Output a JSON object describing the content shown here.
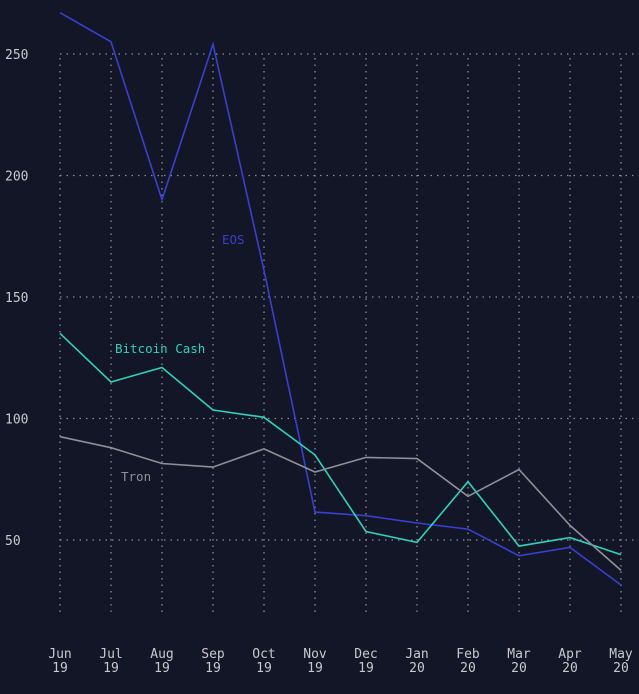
{
  "chart_data": {
    "type": "line",
    "title": "",
    "xlabel": "",
    "ylabel": "",
    "categories": [
      [
        "Jun",
        "19"
      ],
      [
        "Jul",
        "19"
      ],
      [
        "Aug",
        "19"
      ],
      [
        "Sep",
        "19"
      ],
      [
        "Oct",
        "19"
      ],
      [
        "Nov",
        "19"
      ],
      [
        "Dec",
        "19"
      ],
      [
        "Jan",
        "20"
      ],
      [
        "Feb",
        "20"
      ],
      [
        "Mar",
        "20"
      ],
      [
        "Apr",
        "20"
      ],
      [
        "May",
        "20"
      ]
    ],
    "yticks": [
      50,
      100,
      150,
      200,
      250
    ],
    "ylim": [
      18,
      272
    ],
    "grid": true,
    "legend_position": "inline",
    "series": [
      {
        "name": "EOS",
        "color": "#3a3fcf",
        "label_pos": [
          222,
          244
        ],
        "values": [
          267,
          255,
          190,
          254,
          161,
          61.5,
          60,
          57,
          54.5,
          43.5,
          47,
          31.5
        ]
      },
      {
        "name": "Bitcoin Cash",
        "color": "#2ed2bc",
        "label_pos": [
          115,
          353
        ],
        "values": [
          135,
          115,
          121,
          103.5,
          100.5,
          85,
          53.5,
          49,
          74,
          47.5,
          51,
          44
        ]
      },
      {
        "name": "Tron",
        "color": "#8f8f96",
        "label_pos": [
          121,
          481
        ],
        "values": [
          92.5,
          88,
          81.5,
          80,
          87.5,
          78,
          84,
          83.5,
          68,
          79,
          56,
          37.5
        ]
      }
    ]
  },
  "colors": {
    "background": "#131627",
    "tick_text": "#c8c8cc",
    "grid": "#8a8d99"
  }
}
